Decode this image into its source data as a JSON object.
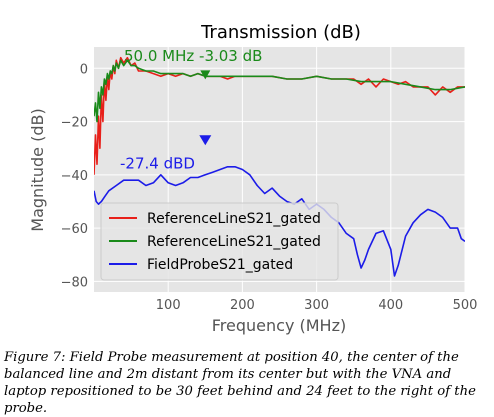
{
  "chart_data": {
    "type": "line",
    "title": "Transmission (dB)",
    "xlabel": "Frequency (MHz)",
    "ylabel": "Magnitude (dB)",
    "xlim": [
      0,
      500
    ],
    "ylim": [
      -84,
      8
    ],
    "xticks": [
      100,
      200,
      300,
      400,
      500
    ],
    "yticks": [
      0,
      -20,
      -40,
      -60,
      -80
    ],
    "xtick_labels": [
      "100",
      "200",
      "300",
      "400",
      "500"
    ],
    "ytick_labels": [
      "0",
      "−20",
      "−40",
      "−60",
      "−80"
    ],
    "grid": true,
    "legend_position": "lower-left",
    "series": [
      {
        "name": "ReferenceLineS21_gated",
        "color": "#e8201a",
        "x": [
          0,
          2,
          4,
          6,
          8,
          10,
          12,
          14,
          16,
          18,
          20,
          22,
          24,
          26,
          28,
          30,
          33,
          36,
          40,
          45,
          50,
          55,
          60,
          70,
          80,
          90,
          100,
          110,
          120,
          130,
          140,
          150,
          160,
          170,
          180,
          190,
          200,
          220,
          240,
          260,
          280,
          300,
          320,
          340,
          350,
          360,
          370,
          380,
          390,
          400,
          410,
          420,
          430,
          440,
          450,
          460,
          470,
          480,
          490,
          500
        ],
        "values": [
          -40,
          -25,
          -36,
          -18,
          -30,
          -10,
          -20,
          -5,
          -12,
          -3,
          -8,
          -1,
          -4,
          1,
          -2,
          3,
          0,
          4,
          2,
          4,
          1,
          2,
          -1,
          -1,
          -2,
          -3,
          -2,
          -3,
          -2,
          -3,
          -2,
          -3,
          -3,
          -3,
          -4,
          -3,
          -3,
          -3,
          -3,
          -4,
          -4,
          -3,
          -4,
          -4,
          -4,
          -6,
          -4,
          -7,
          -4,
          -5,
          -6,
          -5,
          -7,
          -7,
          -7,
          -10,
          -7,
          -9,
          -7,
          -7
        ]
      },
      {
        "name": "ReferenceLineS21_gated",
        "color": "#1a8a1a",
        "x": [
          0,
          2,
          4,
          6,
          8,
          10,
          12,
          14,
          16,
          18,
          20,
          22,
          24,
          26,
          28,
          30,
          33,
          36,
          40,
          45,
          50,
          55,
          60,
          70,
          80,
          90,
          100,
          110,
          120,
          130,
          140,
          150,
          160,
          170,
          180,
          190,
          200,
          220,
          240,
          260,
          280,
          300,
          320,
          340,
          360,
          380,
          400,
          420,
          440,
          460,
          480,
          500
        ],
        "values": [
          -18,
          -13,
          -20,
          -9,
          -15,
          -7,
          -10,
          -4,
          -6,
          -2,
          -4,
          -1,
          -2,
          1,
          -1,
          2,
          0,
          3,
          1,
          3,
          1,
          1,
          0,
          -1,
          -1,
          -2,
          -2,
          -2,
          -2,
          -3,
          -2,
          -3,
          -3,
          -3,
          -3,
          -3,
          -3,
          -3,
          -3,
          -4,
          -4,
          -3,
          -4,
          -4,
          -5,
          -5,
          -5,
          -6,
          -7,
          -8,
          -8,
          -7
        ]
      },
      {
        "name": "FieldProbeS21_gated",
        "color": "#1c1ce8",
        "x": [
          0,
          3,
          6,
          10,
          15,
          20,
          30,
          40,
          50,
          60,
          70,
          80,
          90,
          100,
          110,
          120,
          130,
          140,
          150,
          160,
          170,
          180,
          190,
          200,
          210,
          220,
          230,
          240,
          250,
          260,
          270,
          280,
          290,
          300,
          310,
          320,
          330,
          340,
          350,
          355,
          360,
          365,
          370,
          380,
          390,
          400,
          405,
          410,
          420,
          430,
          440,
          450,
          460,
          470,
          480,
          490,
          495,
          500
        ],
        "values": [
          -46,
          -50,
          -51,
          -50,
          -48,
          -46,
          -44,
          -42,
          -42,
          -42,
          -44,
          -43,
          -40,
          -43,
          -44,
          -43,
          -41,
          -41,
          -40,
          -39,
          -38,
          -37,
          -37,
          -38,
          -40,
          -44,
          -47,
          -45,
          -48,
          -50,
          -51,
          -49,
          -53,
          -51,
          -53,
          -56,
          -58,
          -62,
          -64,
          -70,
          -75,
          -72,
          -68,
          -62,
          -61,
          -68,
          -78,
          -74,
          -63,
          -58,
          -55,
          -53,
          -54,
          -56,
          -60,
          -60,
          -64,
          -65
        ]
      }
    ],
    "annotations": [
      {
        "text": "50.0  MHz  -3.03  dB",
        "color": "#1a8a1a",
        "marker_x": 150,
        "marker_y": -3.03
      },
      {
        "text": "-27.4      dBD",
        "color": "#1c1ce8",
        "marker_x": 150,
        "marker_y": -27.4
      }
    ]
  },
  "caption": "Figure 7: Field Probe measurement at position 40, the center of the balanced line and 2m distant from its center but with the VNA and laptop repositioned to be 30 feet behind and 24 feet to the right of the probe."
}
